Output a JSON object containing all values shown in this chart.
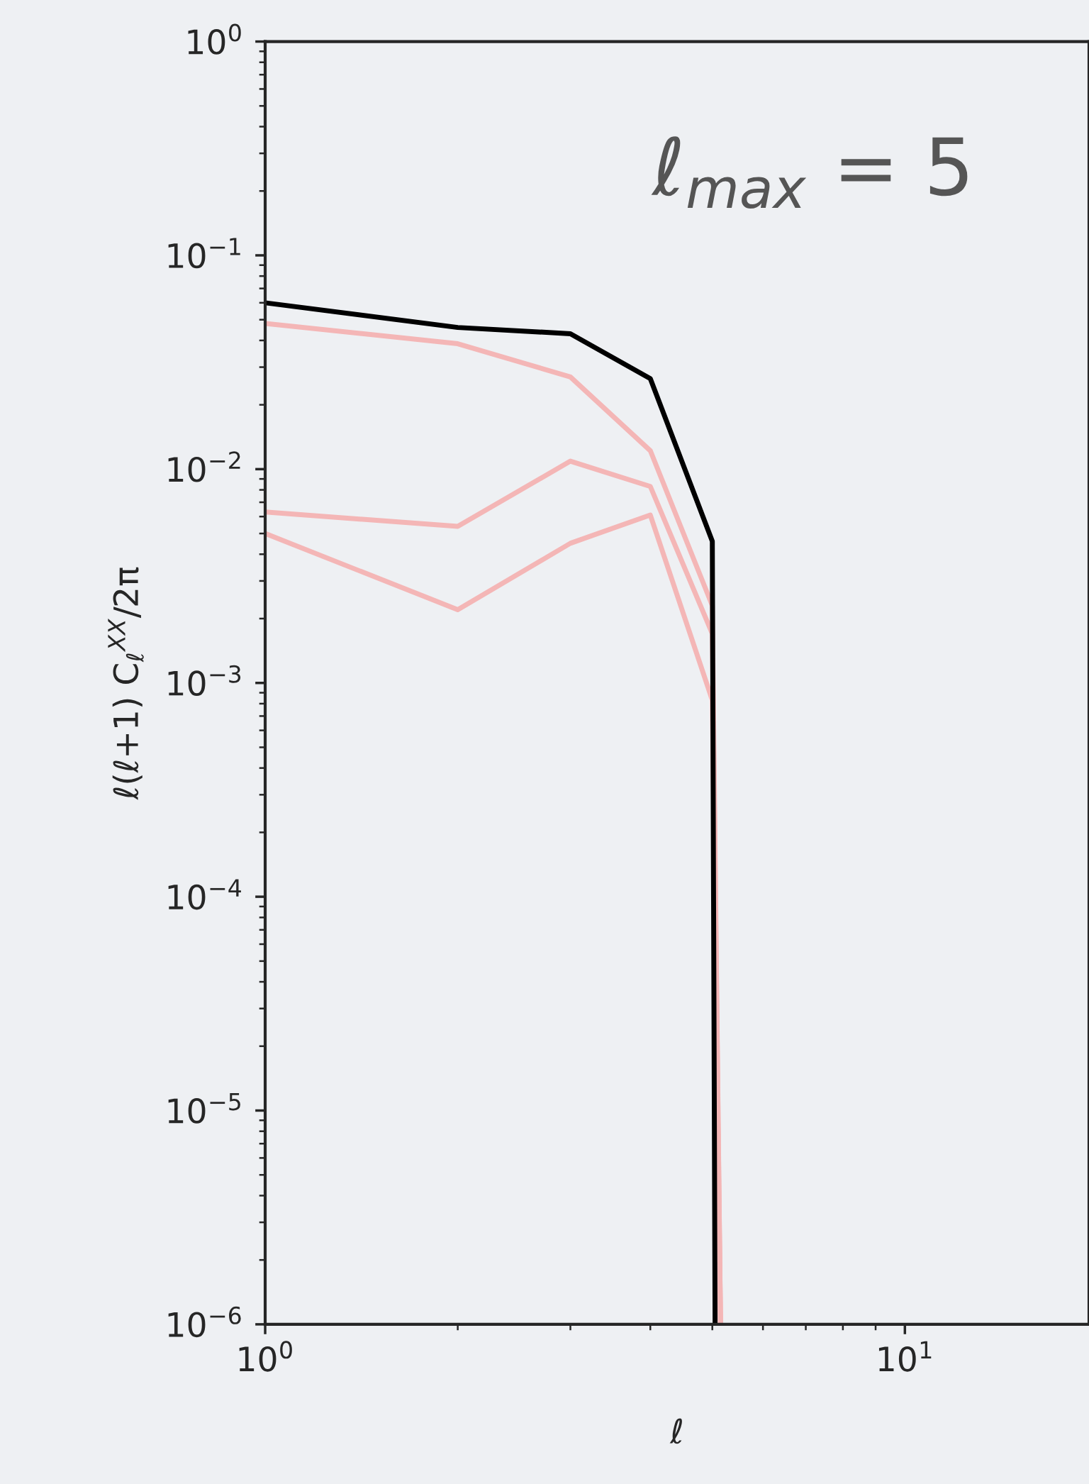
{
  "chart_data": {
    "type": "line",
    "xlabel": "ℓ",
    "ylabel": "ℓ(ℓ+1) C$_{ℓ}$$^{XX}$/2π",
    "log": "xy",
    "grid": false,
    "line_style": "solid",
    "annotations": [
      "ℓ$_{max}$ = 5"
    ],
    "xlim": [
      1,
      19.4
    ],
    "ylim": [
      1e-06,
      1
    ],
    "xticks": [
      {
        "value": 1,
        "label": "10$^{0}$"
      },
      {
        "value": 10,
        "label": "10$^{1}$"
      }
    ],
    "yticks": [
      {
        "value": 1e-06,
        "label": "10$^{−6}$"
      },
      {
        "value": 1e-05,
        "label": "10$^{−5}$"
      },
      {
        "value": 0.0001,
        "label": "10$^{−4}$"
      },
      {
        "value": 0.001,
        "label": "10$^{−3}$"
      },
      {
        "value": 0.01,
        "label": "10$^{−2}$"
      },
      {
        "value": 0.1,
        "label": "10$^{−1}$"
      },
      {
        "value": 1,
        "label": "10$^{0}$"
      }
    ],
    "series": [
      {
        "color": "#f4b6b6",
        "x": [
          1,
          2,
          3,
          4,
          5,
          5.15
        ],
        "values": [
          0.048,
          0.0386,
          0.027,
          0.0122,
          0.0023,
          1e-06
        ]
      },
      {
        "color": "#f4b6b6",
        "x": [
          1,
          2,
          3,
          4,
          5,
          5.15
        ],
        "values": [
          0.0063,
          0.0054,
          0.0109,
          0.0083,
          0.0017,
          1e-06
        ]
      },
      {
        "color": "#f4b6b6",
        "x": [
          1,
          2,
          3,
          4,
          5,
          5.15
        ],
        "values": [
          0.005,
          0.0022,
          0.0045,
          0.0061,
          0.00083,
          1e-06
        ]
      },
      {
        "color": "#000000",
        "x": [
          1,
          2,
          3,
          4,
          5,
          5.05
        ],
        "values": [
          0.06,
          0.046,
          0.043,
          0.0265,
          0.0046,
          1e-06
        ]
      }
    ]
  }
}
